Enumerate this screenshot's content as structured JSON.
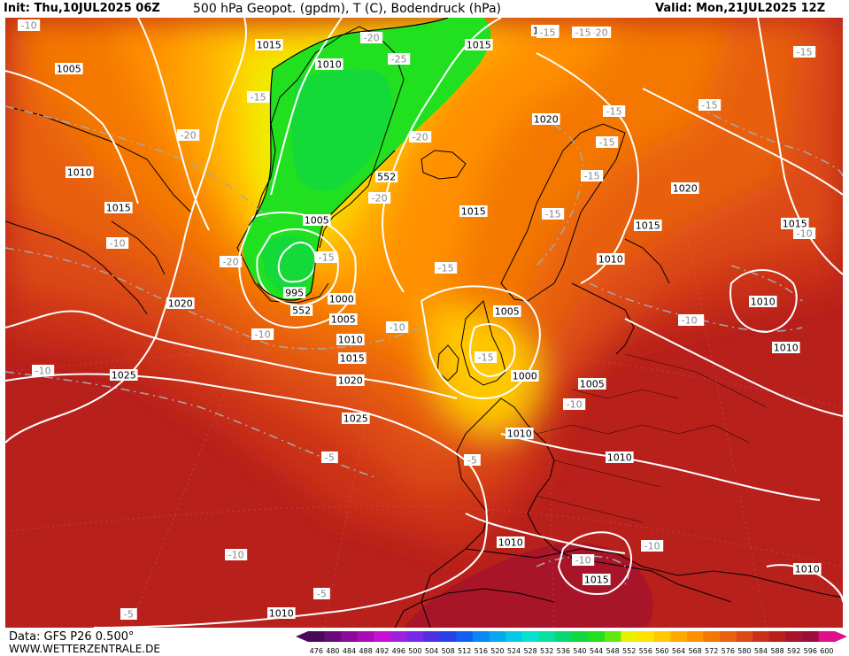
{
  "header": {
    "init_label": "Init: Thu,10JUL2025 06Z",
    "title": "500 hPa Geopot. (gpdm), T (C), Bodendruck (hPa)",
    "valid_label": "Valid: Mon,21JUL2025 12Z"
  },
  "footer": {
    "data_source": "Data: GFS P26 0.500°",
    "website": "WWW.WETTERZENTRALE.DE"
  },
  "colorbar": {
    "labels": [
      "476",
      "480",
      "484",
      "488",
      "492",
      "496",
      "500",
      "504",
      "508",
      "512",
      "516",
      "520",
      "524",
      "528",
      "532",
      "536",
      "540",
      "544",
      "548",
      "552",
      "556",
      "560",
      "564",
      "568",
      "572",
      "576",
      "580",
      "584",
      "588",
      "592",
      "596",
      "600"
    ],
    "colors": [
      "#4a0a5a",
      "#6a0a7a",
      "#8a0a9a",
      "#aa0ab8",
      "#c810d4",
      "#a020e0",
      "#7a28e8",
      "#5030e0",
      "#2840e8",
      "#1060f0",
      "#0888f0",
      "#08a8f0",
      "#08c8e8",
      "#08e0d0",
      "#08e0a0",
      "#08d870",
      "#10d840",
      "#20e020",
      "#60e810",
      "#e8f000",
      "#ffe000",
      "#ffc800",
      "#ffaa00",
      "#ff9000",
      "#f47800",
      "#e86010",
      "#dc4a14",
      "#cc3018",
      "#b8201c",
      "#a81428",
      "#98103a",
      "#e0108a"
    ]
  },
  "map_labels": {
    "pressure": [
      {
        "text": "1015"
      },
      {
        "text": "1005"
      },
      {
        "text": "1010"
      },
      {
        "text": "1015"
      },
      {
        "text": "1020"
      },
      {
        "text": "1015"
      },
      {
        "text": "1010"
      },
      {
        "text": "1020"
      },
      {
        "text": "1015"
      },
      {
        "text": "1020"
      },
      {
        "text": "1015"
      },
      {
        "text": "1020"
      },
      {
        "text": "1015"
      },
      {
        "text": "1010"
      },
      {
        "text": "1010"
      },
      {
        "text": "1010"
      },
      {
        "text": "1005"
      },
      {
        "text": "995"
      },
      {
        "text": "1000"
      },
      {
        "text": "1005"
      },
      {
        "text": "1010"
      },
      {
        "text": "1015"
      },
      {
        "text": "1020"
      },
      {
        "text": "1025"
      },
      {
        "text": "1025"
      },
      {
        "text": "1005"
      },
      {
        "text": "1000"
      },
      {
        "text": "1005"
      },
      {
        "text": "1010"
      },
      {
        "text": "1010"
      },
      {
        "text": "1010"
      },
      {
        "text": "1015"
      },
      {
        "text": "1010"
      },
      {
        "text": "1010"
      },
      {
        "text": "1025"
      },
      {
        "text": "1010"
      },
      {
        "text": "1010"
      }
    ],
    "geopotential": [
      {
        "text": "552"
      },
      {
        "text": "552"
      }
    ],
    "temperature": [
      {
        "text": "-10"
      },
      {
        "text": "-20"
      },
      {
        "text": "-25"
      },
      {
        "text": "-15"
      },
      {
        "text": "-20"
      },
      {
        "text": "-20"
      },
      {
        "text": "-20"
      },
      {
        "text": "-15"
      },
      {
        "text": "-15"
      },
      {
        "text": "-15"
      },
      {
        "text": "-15"
      },
      {
        "text": "-15"
      },
      {
        "text": "-15"
      },
      {
        "text": "-20"
      },
      {
        "text": "-15"
      },
      {
        "text": "-10"
      },
      {
        "text": "-10"
      },
      {
        "text": "-20"
      },
      {
        "text": "-15"
      },
      {
        "text": "-10"
      },
      {
        "text": "-10"
      },
      {
        "text": "-15"
      },
      {
        "text": "-10"
      },
      {
        "text": "-10"
      },
      {
        "text": "-10"
      },
      {
        "text": "-5"
      },
      {
        "text": "-5"
      },
      {
        "text": "-10"
      },
      {
        "text": "-10"
      },
      {
        "text": "-10"
      },
      {
        "text": "-5"
      },
      {
        "text": "-5"
      },
      {
        "text": "-15"
      },
      {
        "text": "-15"
      },
      {
        "text": "-10"
      }
    ]
  },
  "colors": {
    "pressure_isobar": "#ffffff",
    "temperature_isotherm": "#a8a8a8",
    "coastline": "#000000"
  }
}
